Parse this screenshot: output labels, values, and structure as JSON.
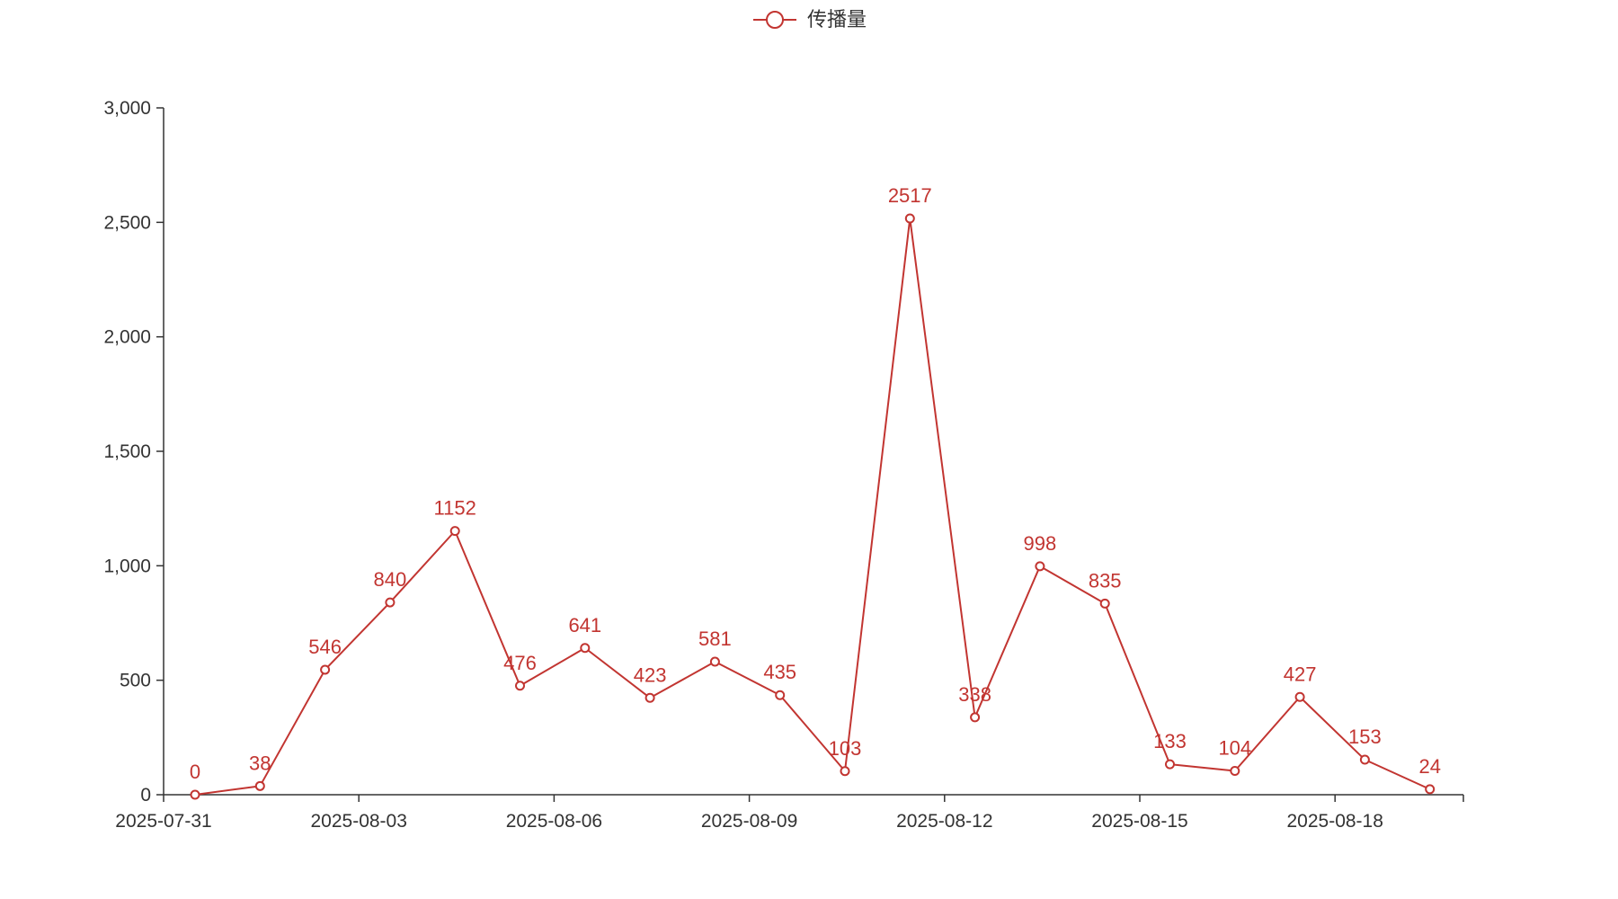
{
  "colors": {
    "series": "#c23531",
    "axis": "#333333",
    "tick_text": "#333333",
    "background": "#ffffff"
  },
  "legend": {
    "label": "传播量",
    "position": "top-center",
    "icon": "empty-circle-line-icon"
  },
  "chart_data": {
    "type": "line",
    "x": [
      "2025-07-31",
      "2025-08-01",
      "2025-08-02",
      "2025-08-03",
      "2025-08-04",
      "2025-08-05",
      "2025-08-06",
      "2025-08-07",
      "2025-08-08",
      "2025-08-09",
      "2025-08-10",
      "2025-08-11",
      "2025-08-12",
      "2025-08-13",
      "2025-08-14",
      "2025-08-15",
      "2025-08-16",
      "2025-08-17",
      "2025-08-18",
      "2025-08-19"
    ],
    "series": [
      {
        "name": "传播量",
        "values": [
          0,
          38,
          546,
          840,
          1152,
          476,
          641,
          423,
          581,
          435,
          103,
          2517,
          338,
          998,
          835,
          133,
          104,
          427,
          153,
          24
        ],
        "marker": "empty-circle",
        "data_labels": true
      }
    ],
    "x_tick_labels": [
      "2025-07-31",
      "2025-08-03",
      "2025-08-06",
      "2025-08-09",
      "2025-08-12",
      "2025-08-15",
      "2025-08-18"
    ],
    "y_tick_labels": [
      "0",
      "500",
      "1,000",
      "1,500",
      "2,000",
      "2,500",
      "3,000"
    ],
    "ylim": [
      0,
      3000
    ],
    "title": "",
    "xlabel": "",
    "ylabel": "",
    "grid": false,
    "legend_position": "top-center"
  }
}
